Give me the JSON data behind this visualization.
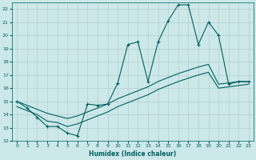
{
  "xlabel": "Humidex (Indice chaleur)",
  "xlim": [
    -0.5,
    23.5
  ],
  "ylim": [
    12,
    22.5
  ],
  "yticks": [
    12,
    13,
    14,
    15,
    16,
    17,
    18,
    19,
    20,
    21,
    22
  ],
  "xticks": [
    0,
    1,
    2,
    3,
    4,
    5,
    6,
    7,
    8,
    9,
    10,
    11,
    12,
    13,
    14,
    15,
    16,
    17,
    18,
    19,
    20,
    21,
    22,
    23
  ],
  "bg_color": "#cce8e8",
  "line_color": "#006060",
  "line1_x": [
    0,
    1,
    2,
    3,
    4,
    5,
    6,
    7,
    8,
    9,
    10,
    11,
    12,
    13,
    14,
    15,
    16,
    17,
    18,
    19,
    20,
    21,
    22,
    23
  ],
  "line1_y": [
    15.0,
    14.5,
    13.8,
    13.1,
    13.1,
    12.6,
    12.4,
    14.8,
    14.7,
    14.8,
    16.4,
    19.3,
    19.5,
    16.5,
    19.5,
    21.1,
    22.3,
    22.3,
    19.3,
    21.0,
    20.0,
    16.3,
    16.5,
    16.5
  ],
  "line2_x": [
    0,
    1,
    2,
    3,
    4,
    5,
    6,
    7,
    8,
    9,
    10,
    11,
    12,
    13,
    14,
    15,
    16,
    17,
    18,
    19,
    20,
    21,
    22,
    23
  ],
  "line2_y": [
    15.0,
    14.7,
    14.4,
    14.1,
    13.9,
    13.7,
    13.9,
    14.2,
    14.5,
    14.8,
    15.2,
    15.5,
    15.8,
    16.1,
    16.5,
    16.8,
    17.1,
    17.35,
    17.6,
    17.8,
    16.3,
    16.4,
    16.5,
    16.5
  ],
  "line3_x": [
    0,
    1,
    2,
    3,
    4,
    5,
    6,
    7,
    8,
    9,
    10,
    11,
    12,
    13,
    14,
    15,
    16,
    17,
    18,
    19,
    20,
    21,
    22,
    23
  ],
  "line3_y": [
    14.6,
    14.3,
    14.0,
    13.5,
    13.4,
    13.1,
    13.3,
    13.6,
    13.9,
    14.2,
    14.6,
    14.9,
    15.2,
    15.5,
    15.9,
    16.2,
    16.5,
    16.75,
    17.0,
    17.2,
    16.0,
    16.1,
    16.2,
    16.3
  ]
}
